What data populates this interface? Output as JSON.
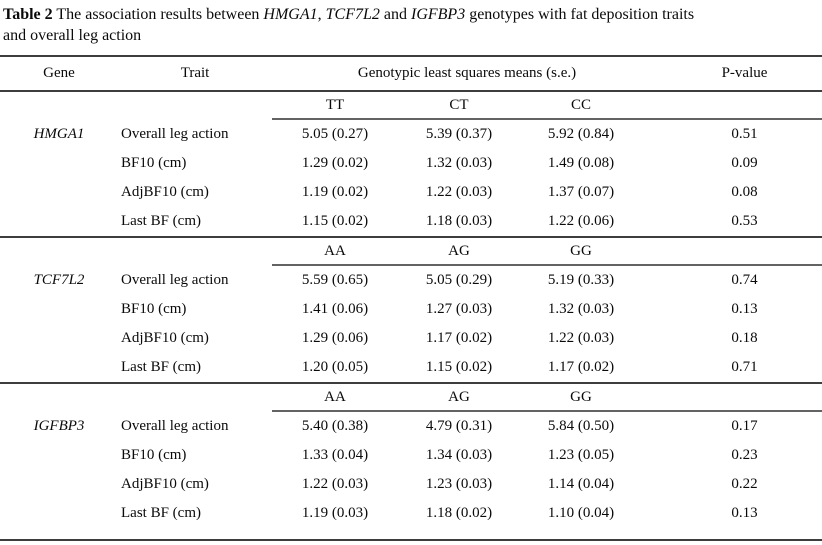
{
  "colors": {
    "text": "#0a0a0a",
    "rule": "#3d3d3d",
    "subheader_rule": "#636363",
    "background": "#ffffff"
  },
  "title": {
    "label": "Table 2",
    "rest_line1": " The association results between ",
    "gene1": "HMGA1",
    "comma": ", ",
    "gene2": "TCF7L2",
    "and_word": " and ",
    "gene3": "IGFBP3",
    "tail_line1": " genotypes with fat deposition traits",
    "line2": "and overall leg action"
  },
  "table": {
    "headers": {
      "gene": "Gene",
      "trait": "Trait",
      "genotypic_means": "Genotypic least squares means (s.e.)",
      "p_value": "P-value"
    },
    "sections": [
      {
        "gene": "HMGA1",
        "genotypes": [
          "TT",
          "CT",
          "CC"
        ],
        "rows": [
          {
            "trait": "Overall leg action",
            "values": [
              "5.05 (0.27)",
              "5.39 (0.37)",
              "5.92 (0.84)"
            ],
            "p": "0.51"
          },
          {
            "trait": "BF10 (cm)",
            "values": [
              "1.29 (0.02)",
              "1.32 (0.03)",
              "1.49 (0.08)"
            ],
            "p": "0.09"
          },
          {
            "trait": "AdjBF10 (cm)",
            "values": [
              "1.19 (0.02)",
              "1.22 (0.03)",
              "1.37 (0.07)"
            ],
            "p": "0.08"
          },
          {
            "trait": "Last BF (cm)",
            "values": [
              "1.15 (0.02)",
              "1.18 (0.03)",
              "1.22 (0.06)"
            ],
            "p": "0.53"
          }
        ]
      },
      {
        "gene": "TCF7L2",
        "genotypes": [
          "AA",
          "AG",
          "GG"
        ],
        "rows": [
          {
            "trait": "Overall leg action",
            "values": [
              "5.59 (0.65)",
              "5.05 (0.29)",
              "5.19 (0.33)"
            ],
            "p": "0.74"
          },
          {
            "trait": "BF10 (cm)",
            "values": [
              "1.41 (0.06)",
              "1.27 (0.03)",
              "1.32 (0.03)"
            ],
            "p": "0.13"
          },
          {
            "trait": "AdjBF10 (cm)",
            "values": [
              "1.29 (0.06)",
              "1.17 (0.02)",
              "1.22 (0.03)"
            ],
            "p": "0.18"
          },
          {
            "trait": "Last BF (cm)",
            "values": [
              "1.20 (0.05)",
              "1.15 (0.02)",
              "1.17 (0.02)"
            ],
            "p": "0.71"
          }
        ]
      },
      {
        "gene": "IGFBP3",
        "genotypes": [
          "AA",
          "AG",
          "GG"
        ],
        "rows": [
          {
            "trait": "Overall leg action",
            "values": [
              "5.40 (0.38)",
              "4.79 (0.31)",
              "5.84 (0.50)"
            ],
            "p": "0.17"
          },
          {
            "trait": "BF10 (cm)",
            "values": [
              "1.33 (0.04)",
              "1.34 (0.03)",
              "1.23 (0.05)"
            ],
            "p": "0.23"
          },
          {
            "trait": "AdjBF10 (cm)",
            "values": [
              "1.22 (0.03)",
              "1.23 (0.03)",
              "1.14 (0.04)"
            ],
            "p": "0.22"
          },
          {
            "trait": "Last BF (cm)",
            "values": [
              "1.19 (0.03)",
              "1.18 (0.02)",
              "1.10 (0.04)"
            ],
            "p": "0.13"
          }
        ]
      }
    ]
  }
}
